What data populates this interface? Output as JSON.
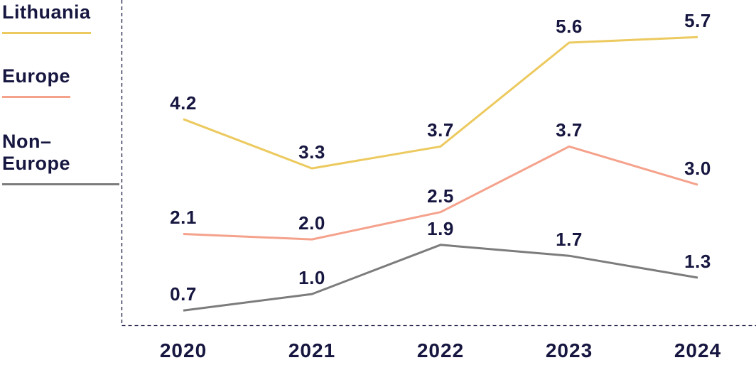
{
  "legend": {
    "items": [
      {
        "label": "Lithuania",
        "color": "#ECCA5F"
      },
      {
        "label": "Europe",
        "color": "#F5A28C"
      },
      {
        "label": "Non–Europe",
        "color": "#7C7C7C"
      }
    ]
  },
  "chart_data": {
    "type": "line",
    "categories": [
      "2020",
      "2021",
      "2022",
      "2023",
      "2024"
    ],
    "series": [
      {
        "name": "Lithuania",
        "color": "#ECCA5F",
        "values": [
          4.2,
          3.3,
          3.7,
          5.6,
          5.7
        ]
      },
      {
        "name": "Europe",
        "color": "#F5A28C",
        "values": [
          2.1,
          2.0,
          2.5,
          3.7,
          3.0
        ]
      },
      {
        "name": "Non-Europe",
        "color": "#7C7C7C",
        "values": [
          0.7,
          1.0,
          1.9,
          1.7,
          1.3
        ]
      }
    ],
    "title": "",
    "xlabel": "",
    "ylabel": "",
    "ylim": [
      0.43,
      6.38
    ],
    "grid": false,
    "legend_position": "left",
    "axis_style": "dashed",
    "value_labels_shown": true
  },
  "colors": {
    "text": "#161640",
    "axis": "#161640",
    "background": "#FFFFFF"
  }
}
